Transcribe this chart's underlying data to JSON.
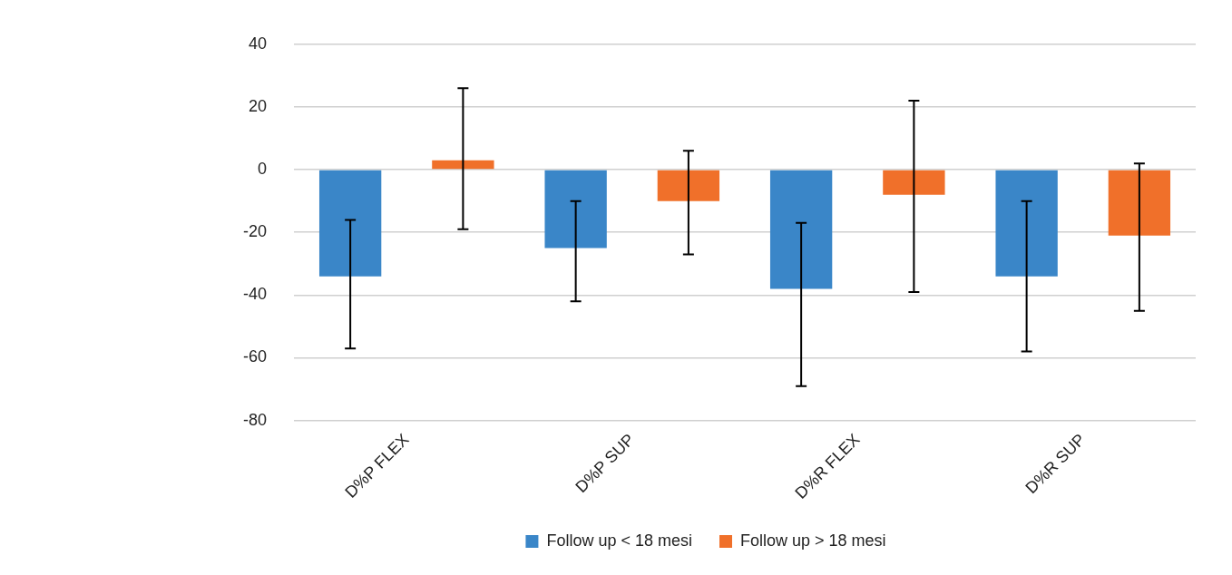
{
  "chart_data": {
    "type": "bar",
    "categories": [
      "D%P FLEX",
      "D%P SUP",
      "D%R FLEX",
      "D%R SUP"
    ],
    "series": [
      {
        "name": "Follow up < 18 mesi",
        "color": "#3a86c8",
        "values": [
          -34,
          -25,
          -38,
          -34
        ],
        "errors": [
          [
            -57,
            -16
          ],
          [
            -42,
            -10
          ],
          [
            -69,
            -17
          ],
          [
            -58,
            -10
          ]
        ]
      },
      {
        "name": "Follow up > 18 mesi",
        "color": "#f0702a",
        "values": [
          3,
          -10,
          -8,
          -21
        ],
        "errors": [
          [
            -19,
            26
          ],
          [
            -27,
            6
          ],
          [
            -39,
            22
          ],
          [
            -45,
            2
          ]
        ]
      }
    ],
    "ylim": [
      -80,
      40
    ],
    "yticks": [
      -80,
      -60,
      -40,
      -20,
      0,
      20,
      40
    ],
    "grid": "y",
    "legend": "bottom"
  }
}
